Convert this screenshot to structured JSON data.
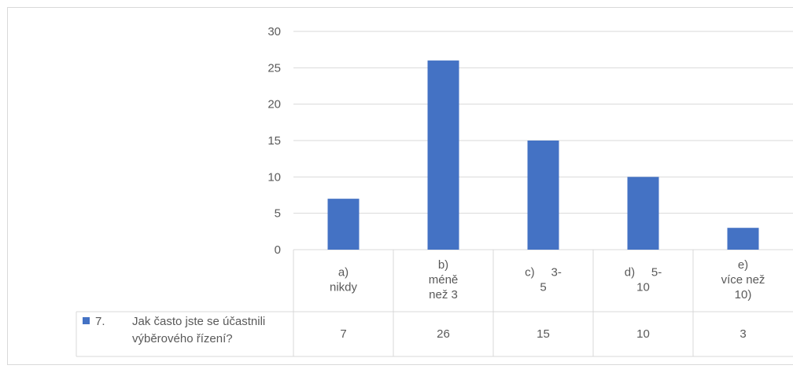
{
  "chart_data": {
    "type": "bar",
    "categories": [
      [
        "a)",
        "nikdy"
      ],
      [
        "b)",
        "méně",
        "než 3"
      ],
      [
        "c)     3-",
        "5"
      ],
      [
        "d)     5-",
        "10"
      ],
      [
        "e)",
        "více než",
        "10)"
      ]
    ],
    "series": [
      {
        "name": "Jak často jste se účastnili výběrového řízení?",
        "name_lines": [
          "Jak často jste se účastnili",
          "výběrového řízení?"
        ],
        "number": "7.",
        "color": "#4472c4",
        "values": [
          7,
          26,
          15,
          10,
          3
        ]
      }
    ],
    "yticks": [
      "0",
      "5",
      "10",
      "15",
      "20",
      "25",
      "30"
    ],
    "ylim": [
      0,
      30
    ],
    "grid": true,
    "legend": "data-table",
    "title": "",
    "xlabel": "",
    "ylabel": ""
  }
}
